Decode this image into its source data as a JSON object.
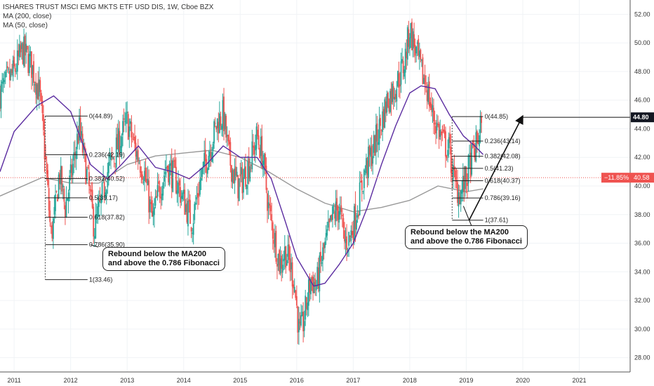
{
  "header": {
    "title": "ISHARES TRUST MSCI EMG MKTS ETF USD DIS, 1W, Cboe BZX",
    "indicators": [
      "MA (200, close)",
      "MA (50, close)"
    ]
  },
  "price_labels": {
    "last": "44.80",
    "change": "−11.85%",
    "level": "40.58"
  },
  "annotations": [
    "Rebound below the MA200\nand above the 0.786 Fibonacci",
    "Rebound below the MA200\nand above the 0.786 Fibonacci"
  ],
  "chart_data": {
    "type": "candlestick",
    "title": "ISHARES TRUST MSCI EMG MKTS ETF USD DIS, 1W, Cboe BZX",
    "y_ticks": [
      "28.00",
      "30.00",
      "32.00",
      "34.00",
      "36.00",
      "38.00",
      "40.00",
      "42.00",
      "44.00",
      "46.00",
      "48.00",
      "50.00",
      "52.00"
    ],
    "ylim": [
      27,
      53
    ],
    "x_ticks": [
      "2011",
      "2012",
      "2013",
      "2014",
      "2015",
      "2016",
      "2017",
      "2018",
      "2019",
      "2020",
      "2021"
    ],
    "xlim": [
      2010.75,
      2021.9
    ],
    "colors": {
      "up": "#26a69a",
      "down": "#ef5350",
      "ma200": "#999999",
      "ma50": "#5b2ca0",
      "ref_line": "#ef5350"
    },
    "price_path": [
      [
        2010.75,
        46.5
      ],
      [
        2011.0,
        48.0
      ],
      [
        2011.15,
        49.5
      ],
      [
        2011.3,
        48.5
      ],
      [
        2011.45,
        46.5
      ],
      [
        2011.55,
        42.0
      ],
      [
        2011.65,
        36.5
      ],
      [
        2011.72,
        38.0
      ],
      [
        2011.8,
        41.0
      ],
      [
        2011.9,
        38.5
      ],
      [
        2012.0,
        40.5
      ],
      [
        2012.15,
        44.0
      ],
      [
        2012.3,
        40.5
      ],
      [
        2012.42,
        37.0
      ],
      [
        2012.52,
        38.5
      ],
      [
        2012.65,
        41.0
      ],
      [
        2012.8,
        42.5
      ],
      [
        2013.0,
        44.5
      ],
      [
        2013.15,
        42.5
      ],
      [
        2013.3,
        41.0
      ],
      [
        2013.45,
        37.5
      ],
      [
        2013.55,
        39.5
      ],
      [
        2013.7,
        41.5
      ],
      [
        2013.85,
        40.5
      ],
      [
        2014.0,
        39.0
      ],
      [
        2014.15,
        37.5
      ],
      [
        2014.3,
        40.5
      ],
      [
        2014.45,
        42.5
      ],
      [
        2014.6,
        44.5
      ],
      [
        2014.7,
        45.0
      ],
      [
        2014.8,
        42.0
      ],
      [
        2014.95,
        40.0
      ],
      [
        2015.05,
        40.5
      ],
      [
        2015.2,
        42.0
      ],
      [
        2015.3,
        43.5
      ],
      [
        2015.4,
        42.0
      ],
      [
        2015.5,
        38.5
      ],
      [
        2015.6,
        36.5
      ],
      [
        2015.7,
        34.5
      ],
      [
        2015.8,
        35.5
      ],
      [
        2015.95,
        33.5
      ],
      [
        2016.05,
        29.5
      ],
      [
        2016.12,
        30.5
      ],
      [
        2016.25,
        33.5
      ],
      [
        2016.35,
        33.0
      ],
      [
        2016.45,
        35.0
      ],
      [
        2016.55,
        36.5
      ],
      [
        2016.65,
        38.0
      ],
      [
        2016.75,
        38.5
      ],
      [
        2016.85,
        36.0
      ],
      [
        2016.95,
        36.5
      ],
      [
        2017.1,
        39.0
      ],
      [
        2017.2,
        41.0
      ],
      [
        2017.35,
        42.5
      ],
      [
        2017.5,
        44.5
      ],
      [
        2017.6,
        46.0
      ],
      [
        2017.75,
        47.0
      ],
      [
        2017.9,
        48.5
      ],
      [
        2018.0,
        51.0
      ],
      [
        2018.1,
        49.5
      ],
      [
        2018.2,
        48.0
      ],
      [
        2018.3,
        47.0
      ],
      [
        2018.4,
        45.0
      ],
      [
        2018.5,
        44.0
      ],
      [
        2018.6,
        43.0
      ],
      [
        2018.7,
        42.5
      ],
      [
        2018.8,
        40.0
      ],
      [
        2018.9,
        39.5
      ],
      [
        2019.0,
        40.5
      ],
      [
        2019.1,
        42.0
      ],
      [
        2019.2,
        43.0
      ],
      [
        2019.25,
        44.5
      ],
      [
        2019.28,
        43.0
      ]
    ],
    "ma200": [
      [
        2010.75,
        39.3
      ],
      [
        2011.5,
        40.6
      ],
      [
        2012.0,
        40.2
      ],
      [
        2012.5,
        40.2
      ],
      [
        2013.0,
        41.5
      ],
      [
        2013.5,
        42.1
      ],
      [
        2014.0,
        42.3
      ],
      [
        2014.5,
        42.5
      ],
      [
        2015.0,
        42.0
      ],
      [
        2015.5,
        41.0
      ],
      [
        2016.0,
        39.8
      ],
      [
        2016.5,
        38.8
      ],
      [
        2017.0,
        38.2
      ],
      [
        2017.5,
        38.5
      ],
      [
        2018.0,
        39.0
      ],
      [
        2018.5,
        40.0
      ],
      [
        2019.0,
        39.6
      ],
      [
        2019.3,
        39.8
      ]
    ],
    "ma50": [
      [
        2010.75,
        41.0
      ],
      [
        2011.0,
        43.8
      ],
      [
        2011.4,
        45.6
      ],
      [
        2011.7,
        46.3
      ],
      [
        2012.0,
        45.2
      ],
      [
        2012.35,
        41.5
      ],
      [
        2012.65,
        40.5
      ],
      [
        2012.9,
        41.5
      ],
      [
        2013.2,
        42.8
      ],
      [
        2013.5,
        41.3
      ],
      [
        2013.8,
        41.0
      ],
      [
        2014.1,
        40.5
      ],
      [
        2014.4,
        41.5
      ],
      [
        2014.7,
        42.8
      ],
      [
        2015.0,
        42.0
      ],
      [
        2015.3,
        42.0
      ],
      [
        2015.55,
        40.5
      ],
      [
        2015.8,
        37.5
      ],
      [
        2016.0,
        35.0
      ],
      [
        2016.3,
        33.0
      ],
      [
        2016.5,
        33.2
      ],
      [
        2016.75,
        34.5
      ],
      [
        2017.0,
        36.0
      ],
      [
        2017.25,
        38.5
      ],
      [
        2017.5,
        41.5
      ],
      [
        2017.75,
        44.2
      ],
      [
        2018.0,
        46.5
      ],
      [
        2018.2,
        47.0
      ],
      [
        2018.45,
        46.8
      ],
      [
        2018.7,
        45.0
      ],
      [
        2018.95,
        43.5
      ],
      [
        2019.15,
        42.8
      ],
      [
        2019.3,
        42.2
      ]
    ],
    "reference_line": 40.58,
    "fib_left": {
      "x_start": 2011.55,
      "x_end": 2012.3,
      "levels": [
        {
          "label": "0(44.89)",
          "value": 44.89
        },
        {
          "label": "0.236(42.19)",
          "value": 42.19
        },
        {
          "label": "0.382(40.52)",
          "value": 40.52
        },
        {
          "label": "0.5(39.17)",
          "value": 39.17
        },
        {
          "label": "0.618(37.82)",
          "value": 37.82
        },
        {
          "label": "0.786(35.90)",
          "value": 35.9
        },
        {
          "label": "1(33.46)",
          "value": 33.46
        }
      ]
    },
    "fib_right": {
      "x_start": 2018.75,
      "x_end": 2019.3,
      "levels": [
        {
          "label": "0(44.85)",
          "value": 44.85
        },
        {
          "label": "0.236(43.14)",
          "value": 43.14
        },
        {
          "label": "0.382(42.08)",
          "value": 42.08
        },
        {
          "label": "0.5(41.23)",
          "value": 41.23
        },
        {
          "label": "0.618(40.37)",
          "value": 40.37
        },
        {
          "label": "0.786(39.16)",
          "value": 39.16
        },
        {
          "label": "1(37.61)",
          "value": 37.61
        }
      ]
    },
    "projection_arrow": {
      "from": [
        2019.05,
        37.6
      ],
      "to": [
        2020.0,
        44.9
      ]
    },
    "last_price_line": {
      "value": 44.8,
      "x_start": 2020.0
    },
    "grid": true
  }
}
